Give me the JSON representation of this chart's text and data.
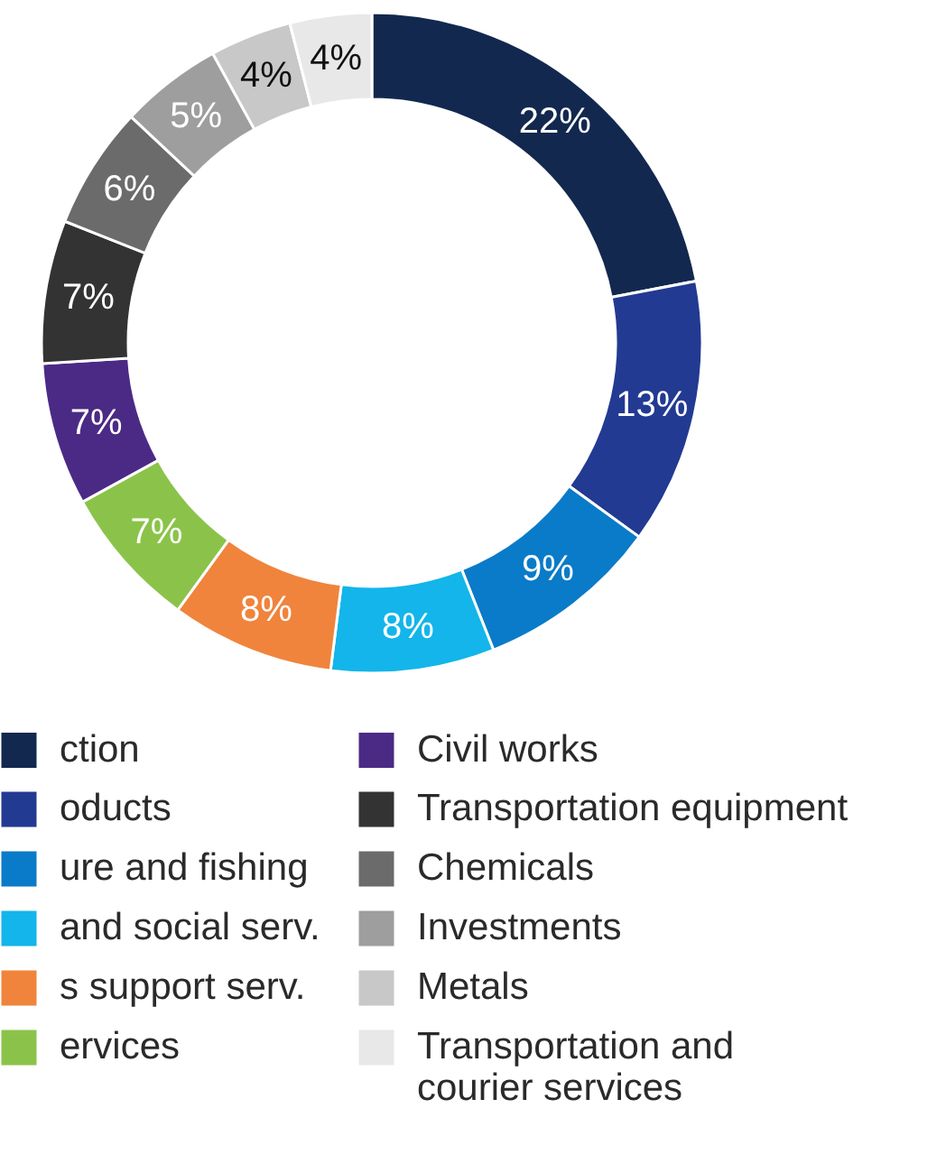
{
  "chart_data": {
    "type": "donut",
    "categories": [
      "ction",
      "oducts",
      "ure and fishing",
      "and social serv.",
      "s support serv.",
      "ervices",
      "Civil works",
      "Transportation equipment",
      "Chemicals",
      "Investments",
      "Metals",
      "Transportation and courier services"
    ],
    "values": [
      22,
      13,
      9,
      8,
      8,
      7,
      7,
      7,
      6,
      5,
      4,
      4
    ],
    "colors": [
      "#13284f",
      "#233a92",
      "#0a7bc8",
      "#13b5ea",
      "#f0843c",
      "#8bc34a",
      "#4b2a85",
      "#333333",
      "#6b6b6b",
      "#9e9e9e",
      "#c8c8c8",
      "#e8e8e8"
    ],
    "value_labels": [
      "22%",
      "13%",
      "9%",
      "8%",
      "8%",
      "7%",
      "7%",
      "7%",
      "6%",
      "5%",
      "4%",
      "4%"
    ],
    "legend": "bottom"
  }
}
